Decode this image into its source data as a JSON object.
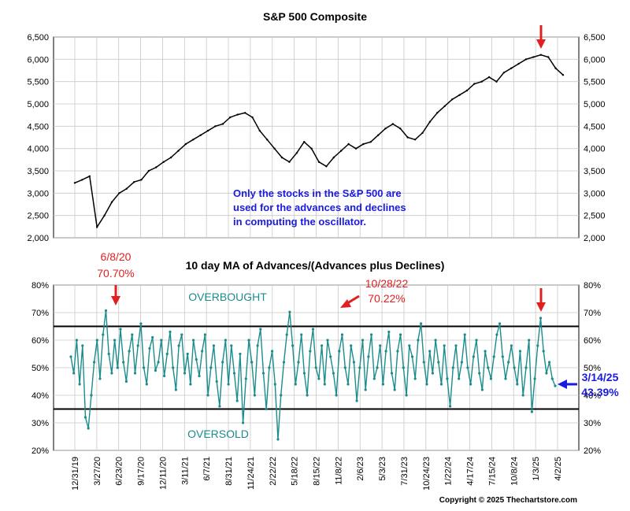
{
  "chart_data": [
    {
      "type": "line",
      "title": "S&P 500 Composite",
      "ylim": [
        2000,
        6500
      ],
      "yticks": [
        "2,000",
        "2,500",
        "3,000",
        "3,500",
        "4,000",
        "4,500",
        "5,000",
        "5,500",
        "6,000",
        "6,500"
      ],
      "grid": true,
      "series": [
        {
          "values": [
            3230,
            3300,
            3380,
            2240,
            2500,
            2800,
            3000,
            3100,
            3250,
            3300,
            3500,
            3580,
            3700,
            3800,
            3950,
            4100,
            4200,
            4300,
            4400,
            4500,
            4550,
            4700,
            4760,
            4800,
            4700,
            4400,
            4200,
            4000,
            3800,
            3700,
            3900,
            4150,
            4000,
            3700,
            3600,
            3800,
            3950,
            4100,
            4000,
            4100,
            4150,
            4300,
            4450,
            4550,
            4450,
            4250,
            4200,
            4350,
            4600,
            4800,
            4950,
            5100,
            5200,
            5300,
            5450,
            5500,
            5600,
            5500,
            5700,
            5800,
            5900,
            6000,
            6050,
            6100,
            6050,
            5800,
            5650
          ]
        }
      ],
      "annotation": "Only the stocks in the S&P 500 are used for the advances and declines in computing the oscillator.",
      "legend": "none"
    },
    {
      "type": "line",
      "title": "10 day MA of Advances/(Advances plus Declines)",
      "ylim": [
        20,
        80
      ],
      "yticks": [
        "20%",
        "30%",
        "40%",
        "50%",
        "60%",
        "70%",
        "80%"
      ],
      "xticks": [
        "12/31/19",
        "3/27/20",
        "6/23/20",
        "9/17/20",
        "12/11/20",
        "3/11/21",
        "6/7/21",
        "8/31/21",
        "11/24/21",
        "2/22/22",
        "5/18/22",
        "8/15/22",
        "11/8/22",
        "2/6/23",
        "5/3/23",
        "7/31/23",
        "10/24/23",
        "1/22/24",
        "4/17/24",
        "7/15/24",
        "10/8/24",
        "1/3/25",
        "4/2/25"
      ],
      "reference_lines": [
        65,
        35
      ],
      "series": [
        {
          "values": [
            54,
            48,
            60,
            44,
            58,
            32,
            28,
            40,
            52,
            60,
            46,
            62,
            70.7,
            55,
            48,
            60,
            50,
            64,
            52,
            45,
            56,
            62,
            48,
            58,
            66,
            50,
            44,
            57,
            61,
            49,
            52,
            60,
            47,
            55,
            63,
            50,
            42,
            58,
            62,
            48,
            55,
            44,
            60,
            53,
            47,
            56,
            62,
            40,
            50,
            58,
            45,
            36,
            52,
            60,
            44,
            58,
            48,
            38,
            55,
            30,
            46,
            60,
            52,
            40,
            58,
            64,
            48,
            35,
            50,
            56,
            44,
            24,
            40,
            52,
            62,
            70.22,
            58,
            44,
            52,
            62,
            48,
            40,
            56,
            64,
            50,
            46,
            58,
            44,
            60,
            54,
            48,
            40,
            56,
            62,
            50,
            44,
            58,
            52,
            38,
            50,
            60,
            42,
            54,
            62,
            46,
            50,
            58,
            44,
            56,
            63,
            48,
            42,
            56,
            62,
            50,
            40,
            58,
            54,
            46,
            60,
            66,
            52,
            44,
            56,
            48,
            60,
            52,
            44,
            58,
            46,
            36,
            50,
            58,
            46,
            52,
            62,
            50,
            44,
            54,
            60,
            48,
            42,
            56,
            50,
            46,
            54,
            62,
            66,
            54,
            46,
            52,
            58,
            50,
            44,
            56,
            40,
            50,
            60,
            34,
            46,
            58,
            68,
            56,
            48,
            52,
            46,
            43.39
          ]
        }
      ],
      "annotations": [
        {
          "date": "6/8/20",
          "value": "70.70%"
        },
        {
          "date": "10/28/22",
          "value": "70.22%"
        },
        {
          "date": "3/14/25",
          "value": "43.39%"
        },
        {
          "text": "OVERBOUGHT"
        },
        {
          "text": "OVERSOLD"
        }
      ],
      "grid": true,
      "legend": "none"
    }
  ],
  "copyright": "Copyright © 2025 Thechartstore.com",
  "colors": {
    "sp_line": "#000000",
    "osc_line": "#1a8c8c",
    "osc_text": "#1a8c8c",
    "annotation_red": "#e02020",
    "annotation_blue": "#1a1ae0",
    "annotation_text": "#1a1ae0",
    "grid": "#c8c8c8",
    "axis": "#000000"
  }
}
